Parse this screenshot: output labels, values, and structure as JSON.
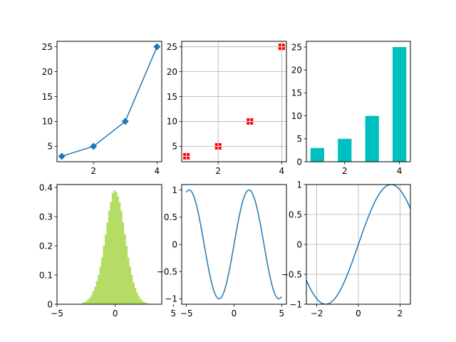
{
  "figure": {
    "background": "#ffffff"
  },
  "chart_data": [
    {
      "type": "line",
      "marker": "diamond",
      "color": "#1f77b4",
      "x": [
        1,
        2,
        3,
        4
      ],
      "y": [
        3,
        5,
        10,
        25
      ],
      "xlim": [
        0.85,
        4.15
      ],
      "ylim": [
        1.9,
        26.1
      ],
      "xticks": [
        2,
        4
      ],
      "yticks": [
        5,
        10,
        15,
        20,
        25
      ],
      "grid": false
    },
    {
      "type": "scatter",
      "marker": "square",
      "color": "#ff0000",
      "x": [
        1,
        2,
        3,
        4
      ],
      "y": [
        3,
        5,
        10,
        25
      ],
      "xlim": [
        0.85,
        4.15
      ],
      "ylim": [
        1.9,
        26.1
      ],
      "xticks": [
        2,
        4
      ],
      "yticks": [
        5,
        10,
        15,
        20,
        25
      ],
      "grid": true
    },
    {
      "type": "bar",
      "color": "#00bfbf",
      "x": [
        1,
        2,
        3,
        4
      ],
      "values": [
        3,
        5,
        10,
        25
      ],
      "bar_width": 0.5,
      "xlim": [
        0.6,
        4.4
      ],
      "ylim": [
        0,
        26.25
      ],
      "xticks": [
        2,
        4
      ],
      "yticks": [
        0,
        5,
        10,
        15,
        20,
        25
      ],
      "grid": false
    },
    {
      "type": "bar",
      "subtype": "histogram",
      "color": "#b5dc65",
      "bin_edges": [
        -2.85,
        -2.7,
        -2.55,
        -2.4,
        -2.25,
        -2.1,
        -1.95,
        -1.8,
        -1.65,
        -1.5,
        -1.35,
        -1.2,
        -1.05,
        -0.9,
        -0.75,
        -0.6,
        -0.45,
        -0.3,
        -0.15,
        0.0,
        0.15,
        0.3,
        0.45,
        0.6,
        0.75,
        0.9,
        1.05,
        1.2,
        1.35,
        1.5,
        1.65,
        1.8,
        1.95,
        2.1,
        2.25,
        2.4,
        2.55,
        2.7,
        2.85
      ],
      "values": [
        0.005,
        0.008,
        0.011,
        0.016,
        0.023,
        0.031,
        0.045,
        0.06,
        0.08,
        0.1,
        0.13,
        0.16,
        0.2,
        0.24,
        0.28,
        0.32,
        0.35,
        0.38,
        0.39,
        0.385,
        0.37,
        0.35,
        0.32,
        0.28,
        0.24,
        0.2,
        0.16,
        0.13,
        0.1,
        0.075,
        0.055,
        0.04,
        0.028,
        0.018,
        0.012,
        0.008,
        0.005,
        0.003
      ],
      "xlim": [
        -5,
        4
      ],
      "ylim": [
        0,
        0.41
      ],
      "xticks": [
        -5,
        0,
        5
      ],
      "yticks": [
        0.0,
        0.1,
        0.2,
        0.3,
        0.4
      ],
      "grid": false
    },
    {
      "type": "line",
      "function": "sin(x)",
      "color": "#1f77b4",
      "x_range": [
        -5,
        5
      ],
      "xlim": [
        -5.5,
        5.5
      ],
      "ylim": [
        -1.1,
        1.1
      ],
      "xticks": [
        -5,
        0,
        5
      ],
      "yticks": [
        -1.0,
        -0.5,
        0.0,
        0.5,
        1.0
      ],
      "grid": false
    },
    {
      "type": "line",
      "function": "sin(x)",
      "color": "#1f77b4",
      "x_range": [
        -5,
        5
      ],
      "xlim": [
        -2.5,
        2.5
      ],
      "ylim": [
        -1,
        1
      ],
      "xticks": [
        -2,
        0,
        2
      ],
      "yticks": [
        -1.0,
        -0.5,
        0.0,
        0.5,
        1.0
      ],
      "grid": true
    }
  ]
}
